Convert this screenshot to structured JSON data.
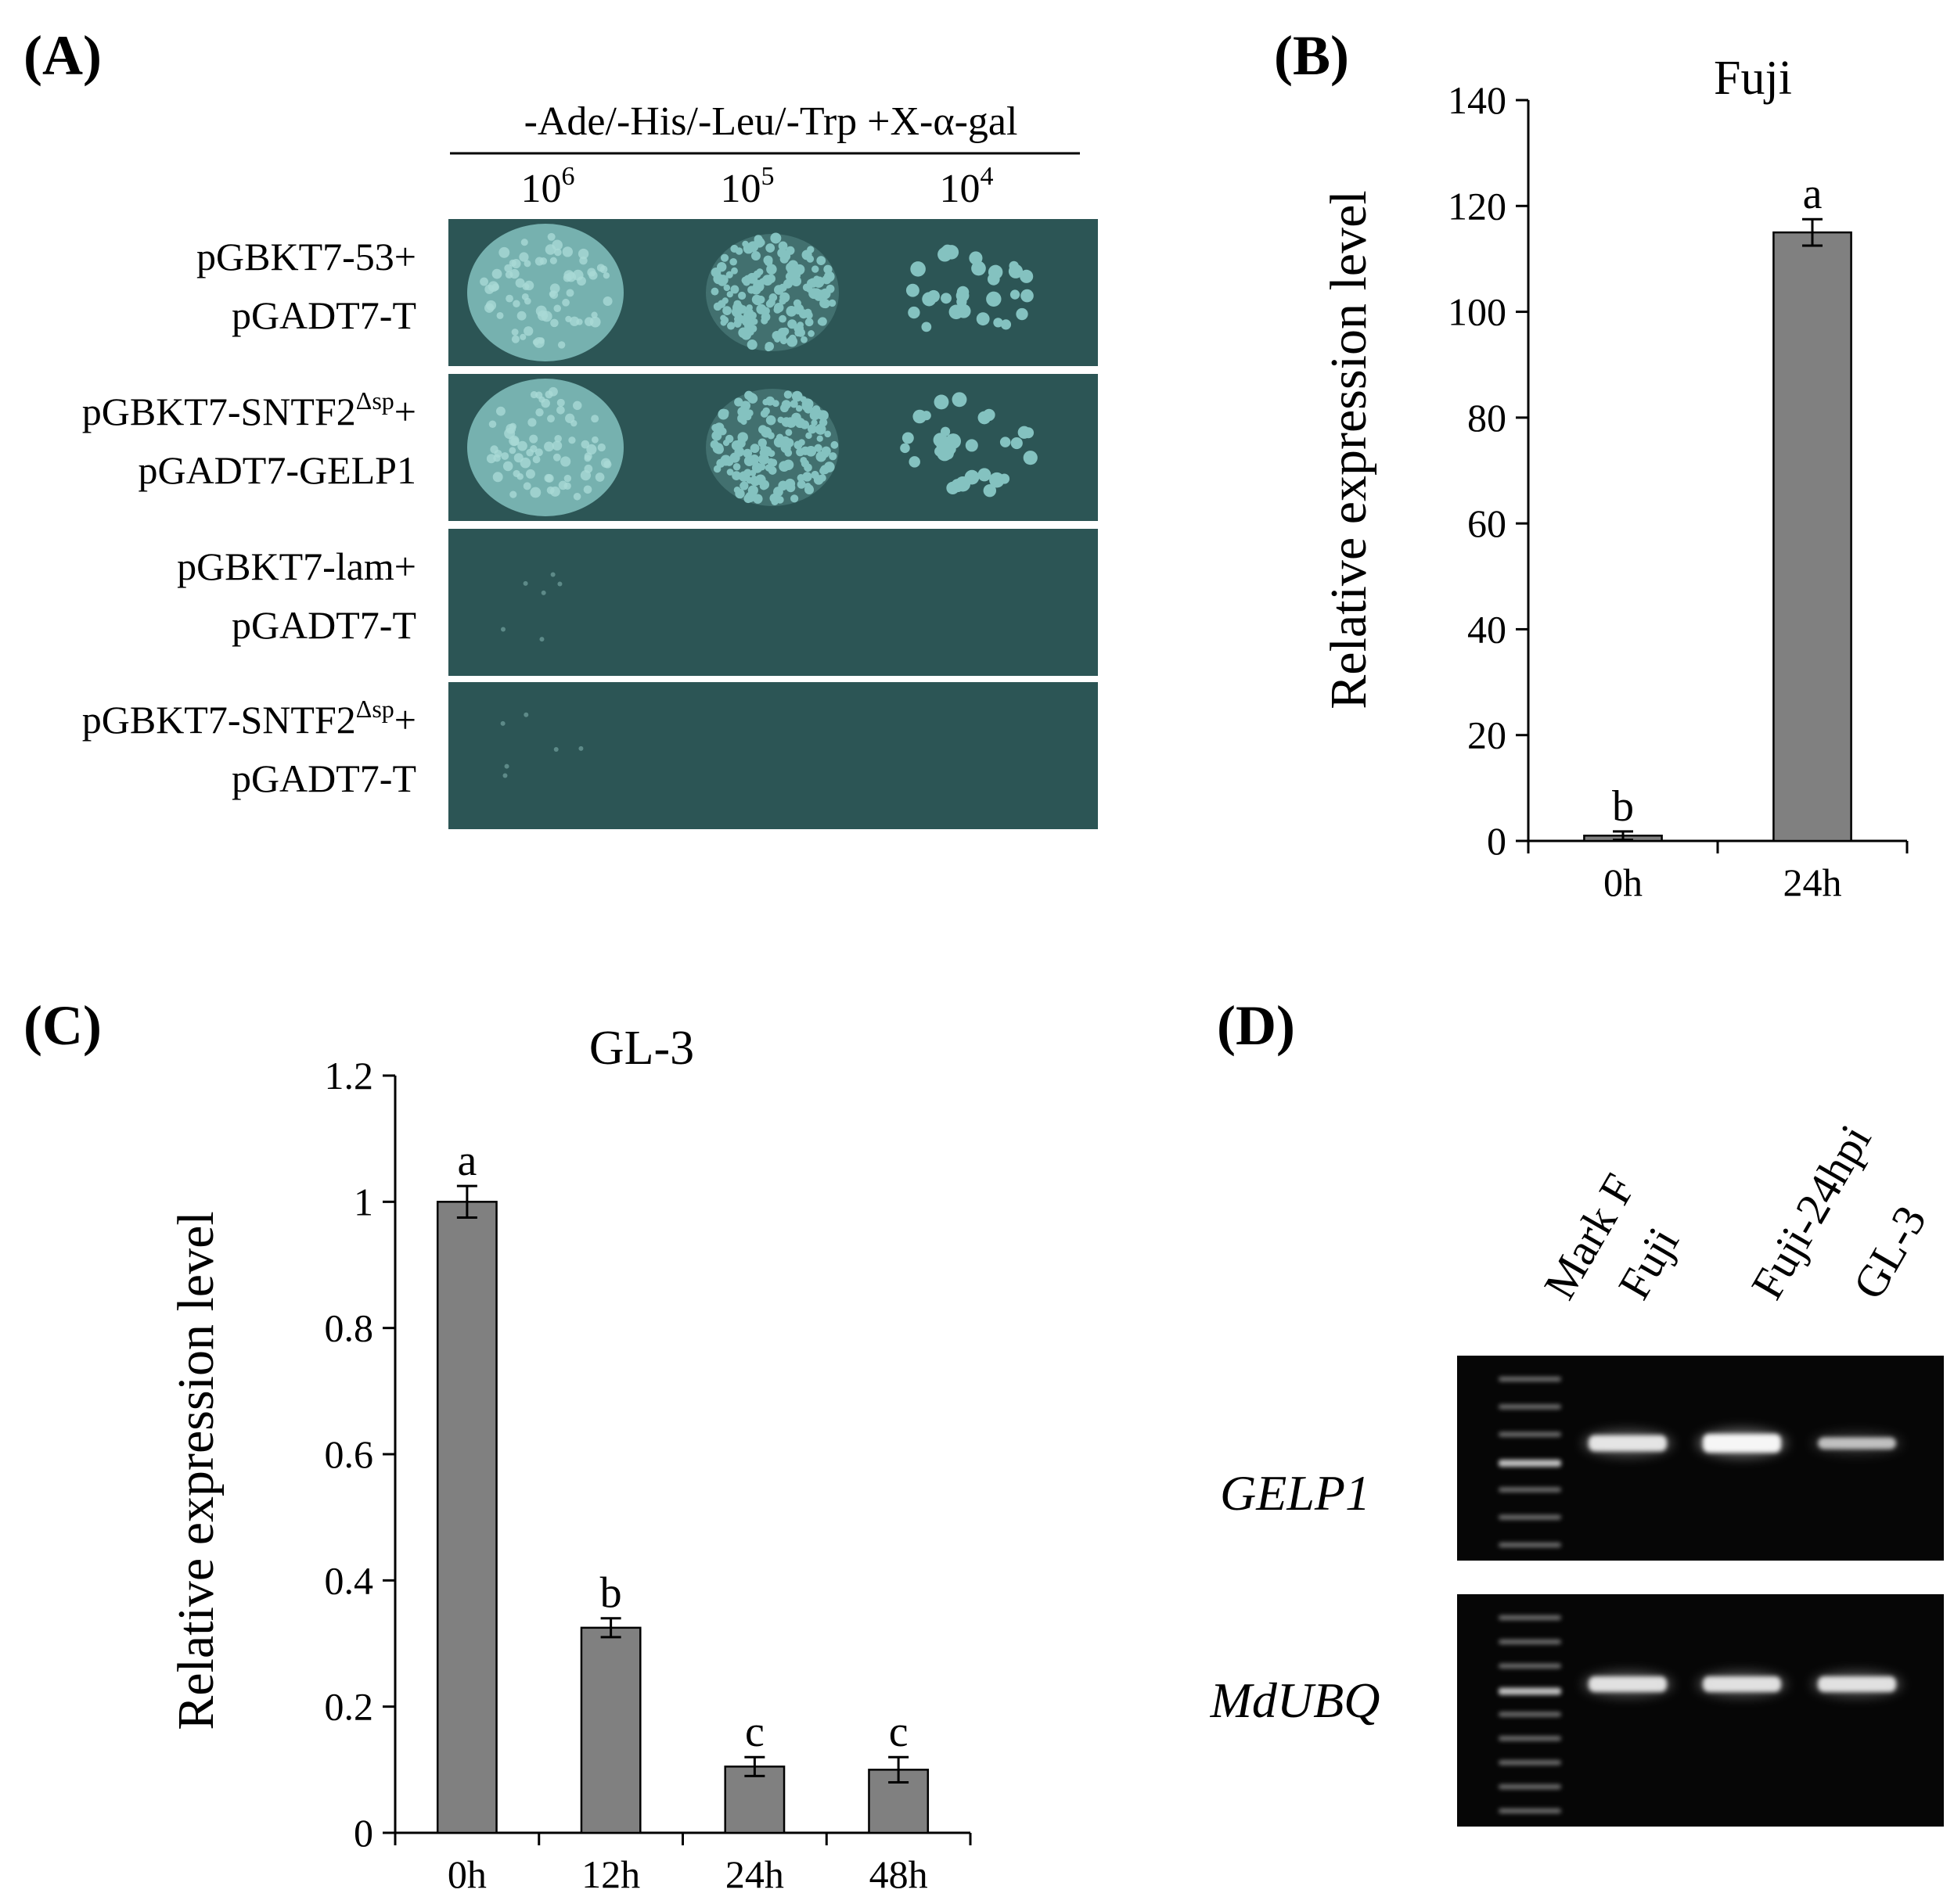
{
  "panel_a": {
    "label": "(A)",
    "medium": "-Ade/-His/-Leu/-Trp +X-α-gal",
    "dilutions": [
      {
        "base": "10",
        "exp": "6"
      },
      {
        "base": "10",
        "exp": "5"
      },
      {
        "base": "10",
        "exp": "4"
      }
    ],
    "rows": [
      {
        "line1": "pGBKT7-53+",
        "line1_sup": "",
        "line1_end": "",
        "line2": "pGADT7-T",
        "growth": "strong"
      },
      {
        "line1": "pGBKT7-SNTF2",
        "line1_sup": "Δsp",
        "line1_end": "+",
        "line2": "pGADT7-GELP1",
        "growth": "strong"
      },
      {
        "line1": "pGBKT7-lam+",
        "line1_sup": "",
        "line1_end": "",
        "line2": "pGADT7-T",
        "growth": "none"
      },
      {
        "line1": "pGBKT7-SNTF2",
        "line1_sup": "Δsp",
        "line1_end": "+",
        "line2": "pGADT7-T",
        "growth": "none"
      }
    ],
    "colors": {
      "plate": "#2c5555",
      "colony": "#84c2c0"
    }
  },
  "panel_b": {
    "label": "(B)",
    "chart_data": {
      "type": "bar",
      "title": "Fuji",
      "ylabel": "Relative expression level",
      "categories": [
        "0h",
        "24h"
      ],
      "values": [
        1,
        115
      ],
      "errors": [
        0.8,
        2.5
      ],
      "significance": [
        "b",
        "a"
      ],
      "ylim": [
        0,
        140
      ],
      "yticks": [
        0,
        20,
        40,
        60,
        80,
        100,
        120,
        140
      ],
      "bar_color": "#808080",
      "grid": false
    }
  },
  "panel_c": {
    "label": "(C)",
    "chart_data": {
      "type": "bar",
      "title": "GL-3",
      "ylabel": "Relative expression level",
      "categories": [
        "0h",
        "12h",
        "24h",
        "48h"
      ],
      "values": [
        1.0,
        0.325,
        0.105,
        0.1
      ],
      "errors": [
        0.025,
        0.015,
        0.015,
        0.02
      ],
      "significance": [
        "a",
        "b",
        "c",
        "c"
      ],
      "ylim": [
        0,
        1.2
      ],
      "yticks": [
        0,
        0.2,
        0.4,
        0.6,
        0.8,
        1,
        1.2
      ],
      "ytick_labels": [
        "0",
        "0.2",
        "0.4",
        "0.6",
        "0.8",
        "1",
        "1.2"
      ],
      "bar_color": "#808080",
      "grid": false
    }
  },
  "panel_d": {
    "label": "(D)",
    "lanes": [
      "Mark F",
      "Fuji",
      "Fuji-24hpi",
      "GL-3"
    ],
    "genes": [
      {
        "name": "GELP1",
        "band_intensity": [
          0.8,
          1.0,
          0.45
        ]
      },
      {
        "name": "MdUBQ",
        "band_intensity": [
          0.75,
          0.75,
          0.75
        ]
      }
    ],
    "colors": {
      "gel": "#060606",
      "band": "#ffffff"
    }
  }
}
